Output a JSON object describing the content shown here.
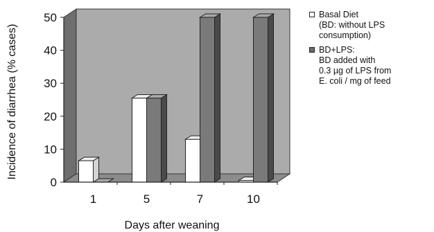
{
  "chart_data": {
    "type": "bar",
    "title": "",
    "xlabel": "Days after weaning",
    "ylabel": "Incidence of diarrhea (% cases)",
    "categories": [
      "1",
      "5",
      "7",
      "10"
    ],
    "ylim": [
      0,
      50
    ],
    "yticks": [
      "0",
      "10",
      "20",
      "30",
      "40",
      "50"
    ],
    "grid": false,
    "legend_position": "right",
    "series": [
      {
        "name": "Basal Diet",
        "legend_lines": [
          "Basal Diet",
          "(BD: without LPS",
          "consumption)"
        ],
        "color": "#ffffff",
        "values": [
          6.5,
          25.5,
          13,
          0.5
        ]
      },
      {
        "name": "BD+LPS:",
        "legend_lines": [
          "BD+LPS:",
          "BD added with",
          "0.3 µg of LPS from",
          "E. coli / mg of feed"
        ],
        "color": "#7a7a7a",
        "values": [
          0,
          25.5,
          50,
          50
        ]
      }
    ],
    "colors": {
      "wall": "#ababab",
      "wall_side": "#6e6e6e",
      "floor": "#8c8c8c",
      "bar_dark_front": "#7a7a7a",
      "bar_dark_side": "#4a4a4a",
      "bar_dark_top": "#a8a8a8",
      "bar_light_front": "#ffffff",
      "bar_light_side": "#d4d4d4",
      "bar_light_top": "#f0f0f0"
    }
  }
}
